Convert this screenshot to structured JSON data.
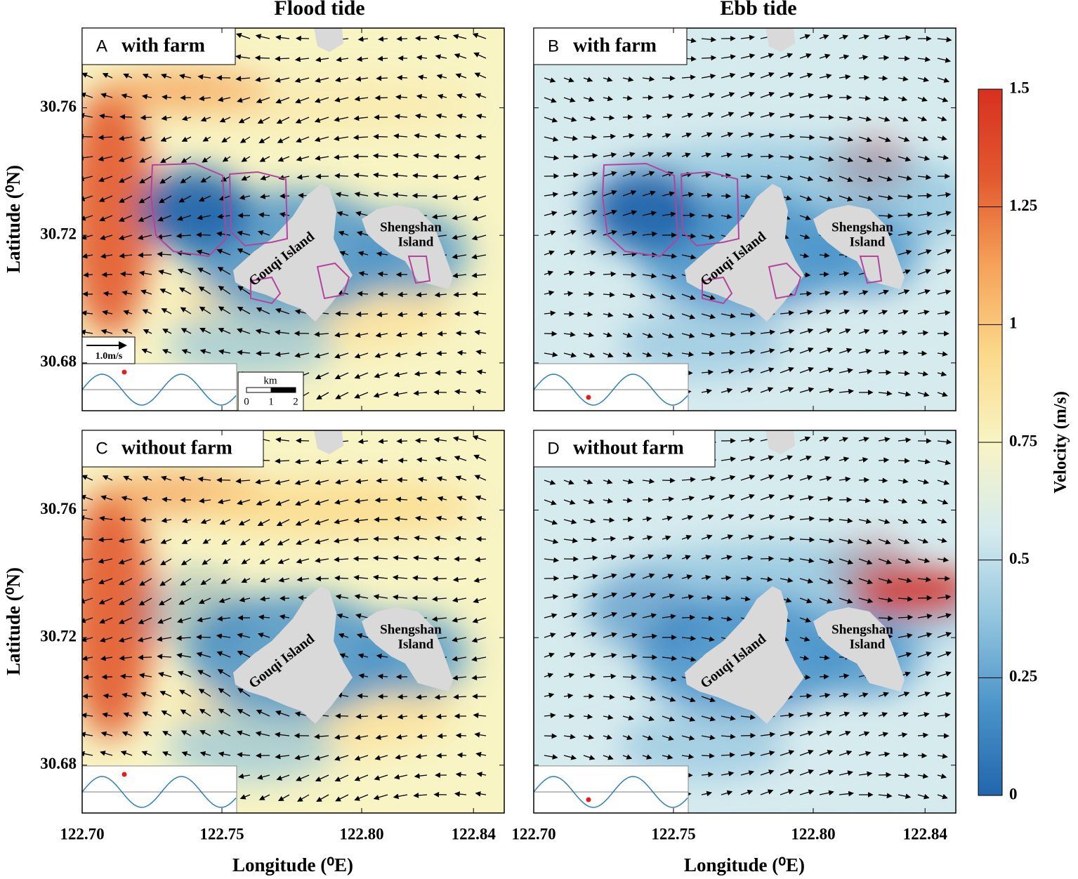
{
  "chart_data": {
    "type": "vector-map",
    "column_titles": [
      "Flood tide",
      "Ebb tide"
    ],
    "panels": [
      {
        "label": "A",
        "title": "with farm",
        "farm": true
      },
      {
        "label": "B",
        "title": "with farm",
        "farm": true
      },
      {
        "label": "C",
        "title": "without farm",
        "farm": false
      },
      {
        "label": "D",
        "title": "without farm",
        "farm": false
      }
    ],
    "xlabel": "Longitude (⁰E)",
    "ylabel": "Latitude (⁰N)",
    "xlim": [
      122.7,
      122.851
    ],
    "xticks": [
      {
        "value": 122.7,
        "label": "122.70"
      },
      122.75,
      {
        "value": 122.8,
        "label": "122.80"
      },
      122.84
    ],
    "ylim": [
      30.665,
      30.785
    ],
    "yticks": [
      30.68,
      30.72,
      30.76
    ],
    "island_labels": [
      [
        "Gouqi Island"
      ],
      [
        "Shengshan",
        "Island"
      ]
    ],
    "vector_scale_label": "1.0m/s",
    "scale_bar": {
      "unit": "km",
      "ticks": [
        0,
        1,
        2
      ]
    },
    "colorbar": {
      "label": "Velocity (m/s)",
      "lim": [
        0,
        1.5
      ],
      "ticks": [
        0,
        0.25,
        0.5,
        0.75,
        1,
        1.25,
        1.5
      ],
      "colors": [
        "#2166ac",
        "#4a93c9",
        "#92c5de",
        "#d6ebee",
        "#f8f4c4",
        "#fbd98a",
        "#f5a25a",
        "#e2592f",
        "#d7301f"
      ]
    }
  }
}
